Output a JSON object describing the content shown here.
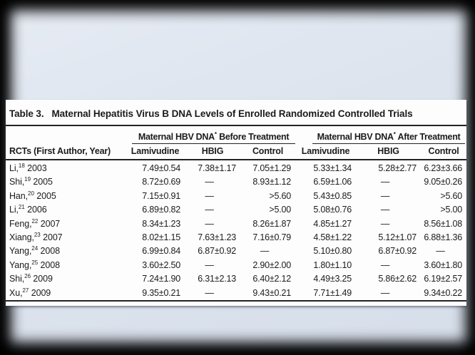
{
  "slide": {
    "background_color": "#dde4ee",
    "frame_color": "#000000",
    "panel_color": "#fdfdfd"
  },
  "table": {
    "title_label": "Table 3.",
    "title_text": "Maternal Hepatitis Virus B DNA Levels of Enrolled Randomized Controlled Trials",
    "row_header": "RCTs (First Author, Year)",
    "groups": [
      {
        "prefix": "Maternal HBV DNA",
        "sup": "*",
        "suffix": " Before Treatment"
      },
      {
        "prefix": "Maternal HBV DNA",
        "sup": "*",
        "suffix": " After Treatment"
      }
    ],
    "columns": [
      "Lamivudine",
      "HBIG",
      "Control",
      "Lamivudine",
      "HBIG",
      "Control"
    ],
    "rows": [
      {
        "author": "Li,",
        "ref": "18",
        "year": "2003",
        "values": [
          "7.49±0.54",
          "7.38±1.17",
          "7.05±1.29",
          "5.33±1.34",
          "5.28±2.77",
          "6.23±3.66"
        ]
      },
      {
        "author": "Shi,",
        "ref": "19",
        "year": "2005",
        "values": [
          "8.72±0.69",
          "—",
          "8.93±1.12",
          "6.59±1.06",
          "—",
          "9.05±0.26"
        ]
      },
      {
        "author": "Han,",
        "ref": "20",
        "year": "2005",
        "values": [
          "7.15±0.91",
          "—",
          ">5.60",
          "5.43±0.85",
          "—",
          ">5.60"
        ]
      },
      {
        "author": "Li,",
        "ref": "21",
        "year": "2006",
        "values": [
          "6.89±0.82",
          "—",
          ">5.00",
          "5.08±0.76",
          "—",
          ">5.00"
        ]
      },
      {
        "author": "Feng,",
        "ref": "22",
        "year": "2007",
        "values": [
          "8.34±1.23",
          "—",
          "8.26±1.87",
          "4.85±1.27",
          "—",
          "8.56±1.08"
        ]
      },
      {
        "author": "Xiang,",
        "ref": "23",
        "year": "2007",
        "values": [
          "8.02±1.15",
          "7.63±1.23",
          "7.16±0.79",
          "4.58±1.22",
          "5.12±1.07",
          "6.88±1.36"
        ]
      },
      {
        "author": "Yang,",
        "ref": "24",
        "year": "2008",
        "values": [
          "6.99±0.84",
          "6.87±0.92",
          "—",
          "5.10±0.80",
          "6.87±0.92",
          "—"
        ]
      },
      {
        "author": "Yang,",
        "ref": "25",
        "year": "2008",
        "values": [
          "3.60±2.50",
          "—",
          "2.90±2.00",
          "1.80±1.10",
          "—",
          "3.60±1.80"
        ]
      },
      {
        "author": "Shi,",
        "ref": "26",
        "year": "2009",
        "values": [
          "7.24±1.90",
          "6.31±2.13",
          "6.40±2.12",
          "4.49±3.25",
          "5.86±2.62",
          "6.19±2.57"
        ]
      },
      {
        "author": "Xu,",
        "ref": "27",
        "year": "2009",
        "values": [
          "9.35±0.21",
          "—",
          "9.43±0.21",
          "7.71±1.49",
          "—",
          "9.34±0.22"
        ]
      }
    ]
  }
}
